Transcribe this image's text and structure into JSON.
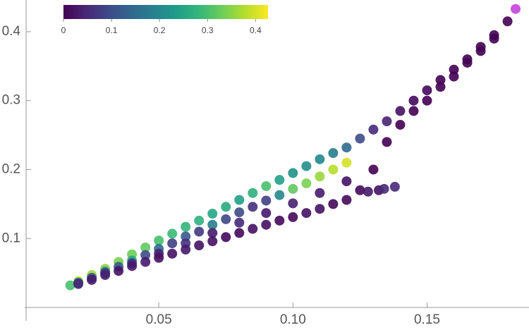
{
  "chart_data": {
    "type": "scatter",
    "xlim": [
      0,
      0.188
    ],
    "ylim": [
      0,
      0.446
    ],
    "xticks": [
      0.05,
      {
        "value": 0.1,
        "label": "0.10"
      },
      0.15
    ],
    "yticks": [
      0.1,
      0.2,
      0.3,
      0.4
    ],
    "colormap": "viridis",
    "colorbar": {
      "lim": [
        0,
        0.426
      ],
      "ticks": [
        0,
        0.1,
        0.2,
        0.3,
        0.4
      ]
    },
    "series": [
      {
        "x": [
          0.017,
          0.02,
          0.02,
          0.02,
          0.02,
          0.03,
          0.03,
          0.03,
          0.03,
          0.04,
          0.04,
          0.04,
          0.04,
          0.05,
          0.05,
          0.05,
          0.05,
          0.06,
          0.06,
          0.06,
          0.06,
          0.07,
          0.07,
          0.07,
          0.07,
          0.08,
          0.08,
          0.08,
          0.08,
          0.09,
          0.09,
          0.09,
          0.09,
          0.1,
          0.1,
          0.1,
          0.1,
          0.11,
          0.11,
          0.11,
          0.11,
          0.12,
          0.12,
          0.12,
          0.12,
          0.025,
          0.025,
          0.025,
          0.035,
          0.035,
          0.035,
          0.045,
          0.045,
          0.045,
          0.055,
          0.055,
          0.055,
          0.065,
          0.065,
          0.065,
          0.075,
          0.075,
          0.075,
          0.085,
          0.085,
          0.085,
          0.095,
          0.095,
          0.095,
          0.105,
          0.105,
          0.105,
          0.115,
          0.115,
          0.115,
          0.125,
          0.125,
          0.13,
          0.13,
          0.135,
          0.135,
          0.138,
          0.132,
          0.14,
          0.14,
          0.145,
          0.145,
          0.15,
          0.15,
          0.155,
          0.155,
          0.16,
          0.16,
          0.165,
          0.165,
          0.17,
          0.17,
          0.175,
          0.175,
          0.18,
          0.128,
          0.134
        ],
        "values": [
          0.032,
          0.038,
          0.036,
          0.035,
          0.034,
          0.056,
          0.052,
          0.05,
          0.047,
          0.077,
          0.068,
          0.064,
          0.06,
          0.097,
          0.085,
          0.078,
          0.072,
          0.117,
          0.103,
          0.093,
          0.084,
          0.136,
          0.12,
          0.108,
          0.096,
          0.156,
          0.138,
          0.123,
          0.108,
          0.176,
          0.155,
          0.137,
          0.12,
          0.195,
          0.172,
          0.151,
          0.131,
          0.215,
          0.19,
          0.166,
          0.143,
          0.232,
          0.21,
          0.183,
          0.156,
          0.047,
          0.043,
          0.04,
          0.066,
          0.059,
          0.053,
          0.087,
          0.076,
          0.066,
          0.107,
          0.093,
          0.078,
          0.126,
          0.11,
          0.09,
          0.146,
          0.128,
          0.102,
          0.166,
          0.146,
          0.114,
          0.185,
          0.163,
          0.126,
          0.205,
          0.18,
          0.137,
          0.224,
          0.2,
          0.15,
          0.245,
          0.17,
          0.258,
          0.2,
          0.27,
          0.24,
          0.175,
          0.17,
          0.285,
          0.265,
          0.3,
          0.285,
          0.315,
          0.3,
          0.33,
          0.32,
          0.345,
          0.335,
          0.36,
          0.355,
          0.378,
          0.372,
          0.395,
          0.39,
          0.415,
          0.168,
          0.172
        ],
        "color_values": [
          0.3,
          0.38,
          0.2,
          0.08,
          0.05,
          0.35,
          0.22,
          0.06,
          0.04,
          0.33,
          0.25,
          0.05,
          0.03,
          0.3,
          0.15,
          0.04,
          0.02,
          0.28,
          0.12,
          0.06,
          0.03,
          0.25,
          0.18,
          0.03,
          0.02,
          0.24,
          0.1,
          0.05,
          0.01,
          0.3,
          0.08,
          0.03,
          0.02,
          0.22,
          0.32,
          0.04,
          0.01,
          0.2,
          0.36,
          0.03,
          0.02,
          0.15,
          0.4,
          0.02,
          0.01,
          0.36,
          0.1,
          0.03,
          0.34,
          0.12,
          0.02,
          0.32,
          0.1,
          0.03,
          0.29,
          0.08,
          0.02,
          0.27,
          0.07,
          0.02,
          0.26,
          0.09,
          0.01,
          0.27,
          0.06,
          0.02,
          0.24,
          0.2,
          0.01,
          0.21,
          0.34,
          0.02,
          0.18,
          0.38,
          0.01,
          0.1,
          0.01,
          0.05,
          0,
          0.04,
          0,
          0.05,
          0.02,
          0.02,
          0,
          0.01,
          0,
          0.01,
          0,
          0,
          0,
          0,
          0,
          0,
          0,
          0,
          0,
          0,
          0,
          0,
          0.03,
          0.05
        ]
      }
    ],
    "highlight": {
      "x": 0.183,
      "y": 0.433,
      "color": "#cc55e0"
    }
  }
}
